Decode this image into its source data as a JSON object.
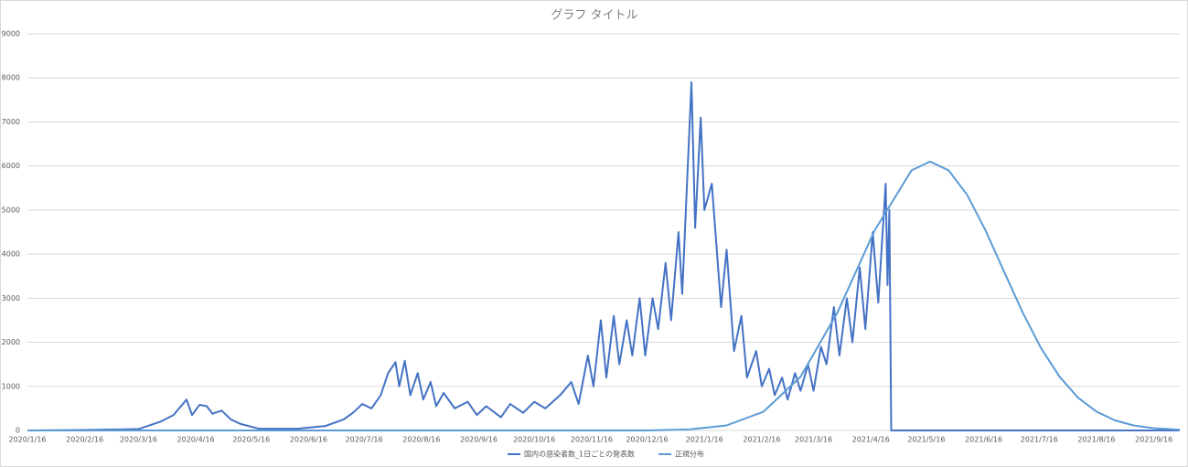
{
  "chart_data": {
    "type": "line",
    "title": "グラフ タイトル",
    "xlim": [
      "2020/1/16",
      "2021/9/30"
    ],
    "xticks": [
      "2020/1/16",
      "2020/2/16",
      "2020/3/16",
      "2020/4/16",
      "2020/5/16",
      "2020/6/16",
      "2020/7/16",
      "2020/8/16",
      "2020/9/16",
      "2020/10/16",
      "2020/11/16",
      "2020/12/16",
      "2021/1/16",
      "2021/2/16",
      "2021/3/16",
      "2021/4/16",
      "2021/5/16",
      "2021/6/16",
      "2021/7/16",
      "2021/8/16",
      "2021/9/16"
    ],
    "ylim": [
      0,
      9000
    ],
    "yticks": [
      0,
      1000,
      2000,
      3000,
      4000,
      5000,
      6000,
      7000,
      8000,
      9000
    ],
    "grid": true,
    "legend": "bottom",
    "series": [
      {
        "name": "国内の感染者数_1日ごとの発表数",
        "color": "#4472c4",
        "x": [
          "2020/1/16",
          "2020/2/16",
          "2020/3/16",
          "2020/3/28",
          "2020/4/4",
          "2020/4/11",
          "2020/4/14",
          "2020/4/18",
          "2020/4/22",
          "2020/4/25",
          "2020/4/30",
          "2020/5/5",
          "2020/5/10",
          "2020/5/20",
          "2020/6/10",
          "2020/6/25",
          "2020/7/5",
          "2020/7/10",
          "2020/7/15",
          "2020/7/20",
          "2020/7/25",
          "2020/7/29",
          "2020/8/2",
          "2020/8/4",
          "2020/8/7",
          "2020/8/10",
          "2020/8/14",
          "2020/8/17",
          "2020/8/21",
          "2020/8/24",
          "2020/8/28",
          "2020/9/3",
          "2020/9/10",
          "2020/9/15",
          "2020/9/20",
          "2020/9/28",
          "2020/10/3",
          "2020/10/10",
          "2020/10/16",
          "2020/10/22",
          "2020/10/30",
          "2020/11/5",
          "2020/11/9",
          "2020/11/14",
          "2020/11/17",
          "2020/11/21",
          "2020/11/24",
          "2020/11/28",
          "2020/12/1",
          "2020/12/5",
          "2020/12/8",
          "2020/12/12",
          "2020/12/15",
          "2020/12/19",
          "2020/12/22",
          "2020/12/26",
          "2020/12/29",
          "2021/1/2",
          "2021/1/4",
          "2021/1/9",
          "2021/1/11",
          "2021/1/14",
          "2021/1/16",
          "2021/1/20",
          "2021/1/25",
          "2021/1/28",
          "2021/2/1",
          "2021/2/5",
          "2021/2/8",
          "2021/2/13",
          "2021/2/16",
          "2021/2/20",
          "2021/2/23",
          "2021/2/27",
          "2021/3/2",
          "2021/3/6",
          "2021/3/9",
          "2021/3/13",
          "2021/3/16",
          "2021/3/20",
          "2021/3/23",
          "2021/3/27",
          "2021/3/30",
          "2021/4/3",
          "2021/4/6",
          "2021/4/10",
          "2021/4/13",
          "2021/4/17",
          "2021/4/20",
          "2021/4/24",
          "2021/4/25",
          "2021/4/26",
          "2021/4/27",
          "2021/9/30"
        ],
        "values": [
          0,
          10,
          30,
          200,
          350,
          700,
          350,
          580,
          550,
          380,
          450,
          250,
          150,
          40,
          40,
          100,
          250,
          400,
          600,
          500,
          800,
          1300,
          1550,
          1000,
          1580,
          800,
          1300,
          700,
          1100,
          550,
          850,
          500,
          650,
          350,
          550,
          300,
          600,
          400,
          650,
          500,
          800,
          1100,
          600,
          1700,
          1000,
          2500,
          1200,
          2600,
          1500,
          2500,
          1700,
          3000,
          1700,
          3000,
          2300,
          3800,
          2500,
          4500,
          3100,
          7900,
          4600,
          7100,
          5000,
          5600,
          2800,
          4100,
          1800,
          2600,
          1200,
          1800,
          1000,
          1400,
          800,
          1200,
          700,
          1300,
          900,
          1500,
          900,
          1900,
          1500,
          2800,
          1700,
          3000,
          2000,
          3700,
          2300,
          4500,
          2900,
          5600,
          3300,
          5000,
          0,
          0
        ]
      },
      {
        "name": "正規分布",
        "color": "#5b9bd5",
        "x": [
          "2020/1/16",
          "2020/12/16",
          "2021/1/8",
          "2021/1/28",
          "2021/2/17",
          "2021/3/9",
          "2021/3/29",
          "2021/4/18",
          "2021/5/8",
          "2021/5/18",
          "2021/5/28",
          "2021/6/7",
          "2021/6/17",
          "2021/6/27",
          "2021/7/7",
          "2021/7/17",
          "2021/7/27",
          "2021/8/6",
          "2021/8/16",
          "2021/8/26",
          "2021/9/5",
          "2021/9/15",
          "2021/9/30"
        ],
        "values": [
          0,
          0,
          24,
          114,
          427,
          1219,
          2681,
          4537,
          5902,
          6100,
          5902,
          5349,
          4537,
          3604,
          2681,
          1868,
          1219,
          743,
          427,
          228,
          114,
          54,
          15
        ]
      }
    ]
  }
}
